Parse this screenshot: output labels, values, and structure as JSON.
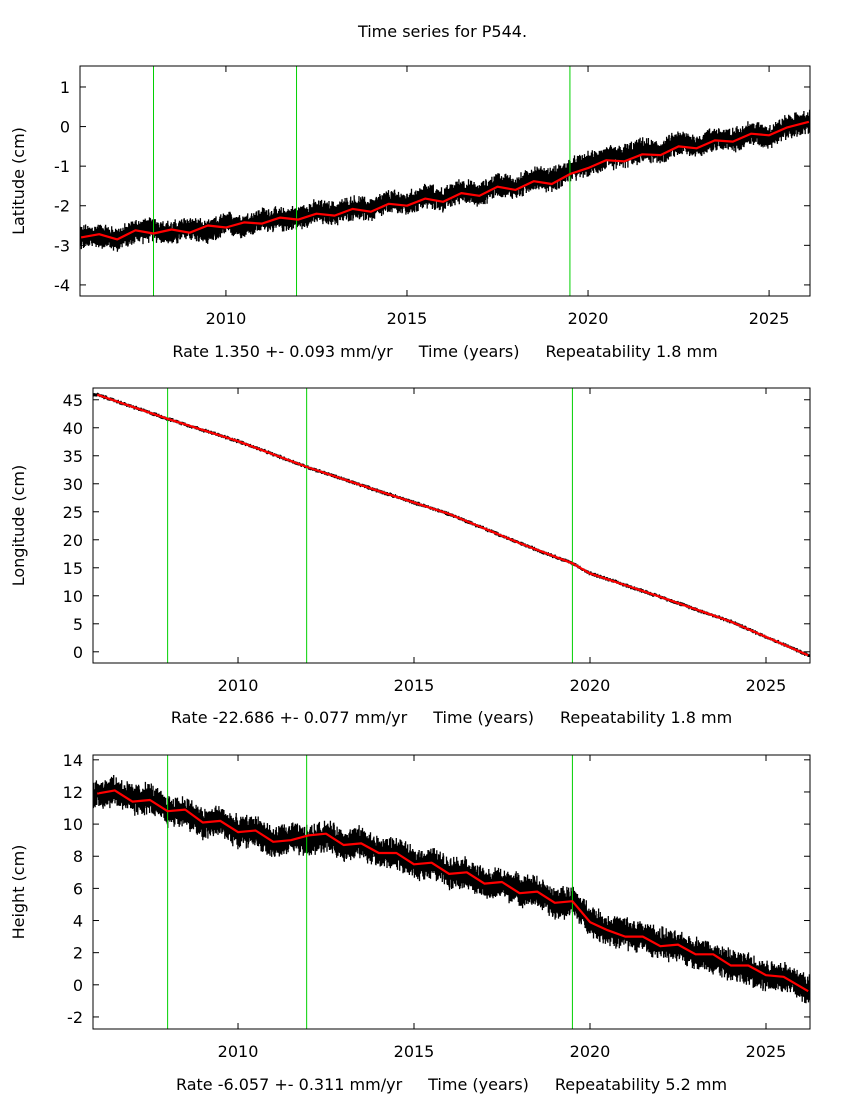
{
  "title": "Time series for P544.",
  "chart_data": [
    {
      "type": "line",
      "component": "latitude",
      "ylabel": "Latitude (cm)",
      "xlabel": "Time (years)",
      "rate_text": "Rate 1.350 +- 0.093 mm/yr",
      "repeatability_text": "Repeatability 1.8 mm",
      "xlim": [
        2005.97,
        2026.13
      ],
      "ylim": [
        -4.28,
        1.53
      ],
      "xticks": [
        2010,
        2015,
        2020,
        2025
      ],
      "yticks": [
        1,
        0,
        -1,
        -2,
        -3,
        -4
      ],
      "events": [
        2008.0,
        2011.95,
        2019.5
      ],
      "noise_amplitude": 0.28,
      "series": [
        {
          "name": "data",
          "color": "#000000",
          "x": [
            2006.0,
            2006.5,
            2007.0,
            2007.5,
            2008.0,
            2008.5,
            2009.0,
            2009.5,
            2010.0,
            2010.5,
            2011.0,
            2011.5,
            2012.0,
            2012.5,
            2013.0,
            2013.5,
            2014.0,
            2014.5,
            2015.0,
            2015.5,
            2016.0,
            2016.5,
            2017.0,
            2017.5,
            2018.0,
            2018.5,
            2019.0,
            2019.5,
            2020.0,
            2020.5,
            2021.0,
            2021.5,
            2022.0,
            2022.5,
            2023.0,
            2023.5,
            2024.0,
            2024.5,
            2025.0,
            2025.5,
            2026.1
          ],
          "y": [
            -2.8,
            -2.75,
            -2.85,
            -2.65,
            -2.6,
            -2.7,
            -2.55,
            -2.7,
            -2.45,
            -2.5,
            -2.35,
            -2.35,
            -2.3,
            -2.15,
            -2.2,
            -2.05,
            -2.1,
            -1.9,
            -1.95,
            -1.75,
            -1.85,
            -1.6,
            -1.75,
            -1.45,
            -1.55,
            -1.3,
            -1.35,
            -1.1,
            -0.95,
            -0.8,
            -0.75,
            -0.6,
            -0.65,
            -0.4,
            -0.5,
            -0.3,
            -0.35,
            -0.15,
            -0.25,
            0.0,
            0.1
          ]
        },
        {
          "name": "model",
          "color": "#ff0000",
          "x": [
            2006.0,
            2006.5,
            2007.0,
            2007.5,
            2008.0,
            2008.5,
            2009.0,
            2009.5,
            2010.0,
            2010.5,
            2011.0,
            2011.5,
            2012.0,
            2012.5,
            2013.0,
            2013.5,
            2014.0,
            2014.5,
            2015.0,
            2015.5,
            2016.0,
            2016.5,
            2017.0,
            2017.5,
            2018.0,
            2018.5,
            2019.0,
            2019.5,
            2020.0,
            2020.5,
            2021.0,
            2021.5,
            2022.0,
            2022.5,
            2023.0,
            2023.5,
            2024.0,
            2024.5,
            2025.0,
            2025.5,
            2026.1
          ],
          "y": [
            -2.8,
            -2.72,
            -2.85,
            -2.62,
            -2.7,
            -2.6,
            -2.68,
            -2.5,
            -2.55,
            -2.42,
            -2.45,
            -2.3,
            -2.35,
            -2.2,
            -2.25,
            -2.08,
            -2.15,
            -1.95,
            -2.0,
            -1.82,
            -1.9,
            -1.68,
            -1.75,
            -1.52,
            -1.6,
            -1.38,
            -1.45,
            -1.2,
            -1.05,
            -0.85,
            -0.88,
            -0.7,
            -0.72,
            -0.5,
            -0.55,
            -0.35,
            -0.38,
            -0.18,
            -0.22,
            -0.02,
            0.12
          ]
        }
      ]
    },
    {
      "type": "line",
      "component": "longitude",
      "ylabel": "Longitude (cm)",
      "xlabel": "Time (years)",
      "rate_text": "Rate -22.686 +- 0.077 mm/yr",
      "repeatability_text": "Repeatability 1.8 mm",
      "xlim": [
        2005.88,
        2026.25
      ],
      "ylim": [
        -2.0,
        47.1
      ],
      "xticks": [
        2010,
        2015,
        2020,
        2025
      ],
      "yticks": [
        45,
        40,
        35,
        30,
        25,
        20,
        15,
        10,
        5,
        0
      ],
      "events": [
        2008.0,
        2011.95,
        2019.5
      ],
      "noise_amplitude": 0.35,
      "series": [
        {
          "name": "data",
          "color": "#000000",
          "x": [
            2006.0,
            2008.0,
            2010.0,
            2012.0,
            2014.0,
            2016.0,
            2018.0,
            2019.5,
            2020.0,
            2022.0,
            2024.0,
            2026.2
          ],
          "y": [
            45.9,
            41.6,
            37.6,
            32.9,
            28.7,
            24.6,
            19.4,
            15.8,
            14.0,
            9.8,
            5.4,
            -0.6
          ]
        },
        {
          "name": "model",
          "color": "#ff0000",
          "x": [
            2006.0,
            2008.0,
            2010.0,
            2012.0,
            2014.0,
            2016.0,
            2018.0,
            2019.5,
            2020.0,
            2022.0,
            2024.0,
            2026.2
          ],
          "y": [
            45.9,
            41.6,
            37.6,
            32.9,
            28.7,
            24.6,
            19.4,
            15.8,
            14.0,
            9.8,
            5.4,
            -0.6
          ]
        }
      ]
    },
    {
      "type": "line",
      "component": "height",
      "ylabel": "Height (cm)",
      "xlabel": "Time (years)",
      "rate_text": "Rate -6.057 +- 0.311 mm/yr",
      "repeatability_text": "Repeatability 5.2 mm",
      "xlim": [
        2005.88,
        2026.25
      ],
      "ylim": [
        -2.75,
        14.3
      ],
      "xticks": [
        2010,
        2015,
        2020,
        2025
      ],
      "yticks": [
        14,
        12,
        10,
        8,
        6,
        4,
        2,
        0,
        -2
      ],
      "events": [
        2008.0,
        2011.95,
        2019.5
      ],
      "noise_amplitude": 0.9,
      "series": [
        {
          "name": "data",
          "color": "#000000",
          "x": [
            2006.0,
            2006.5,
            2007.0,
            2007.5,
            2008.0,
            2008.5,
            2009.0,
            2009.5,
            2010.0,
            2010.5,
            2011.0,
            2011.5,
            2012.0,
            2012.5,
            2013.0,
            2013.5,
            2014.0,
            2014.5,
            2015.0,
            2015.5,
            2016.0,
            2016.5,
            2017.0,
            2017.5,
            2018.0,
            2018.5,
            2019.0,
            2019.5,
            2020.0,
            2020.5,
            2021.0,
            2021.5,
            2022.0,
            2022.5,
            2023.0,
            2023.5,
            2024.0,
            2024.5,
            2025.0,
            2025.5,
            2026.2
          ],
          "y": [
            11.8,
            12.1,
            11.5,
            11.6,
            10.8,
            10.8,
            10.0,
            10.2,
            9.5,
            9.6,
            8.8,
            9.1,
            8.9,
            9.3,
            8.7,
            8.9,
            8.2,
            8.2,
            7.5,
            7.6,
            7.0,
            7.0,
            6.2,
            6.3,
            5.9,
            5.8,
            5.0,
            5.2,
            4.0,
            3.4,
            3.2,
            3.0,
            2.6,
            2.3,
            2.0,
            1.7,
            1.2,
            1.0,
            0.6,
            0.5,
            -0.3
          ]
        },
        {
          "name": "model",
          "color": "#ff0000",
          "x": [
            2006.0,
            2006.5,
            2007.0,
            2007.5,
            2008.0,
            2008.5,
            2009.0,
            2009.5,
            2010.0,
            2010.5,
            2011.0,
            2011.5,
            2012.0,
            2012.5,
            2013.0,
            2013.5,
            2014.0,
            2014.5,
            2015.0,
            2015.5,
            2016.0,
            2016.5,
            2017.0,
            2017.5,
            2018.0,
            2018.5,
            2019.0,
            2019.5,
            2020.0,
            2020.5,
            2021.0,
            2021.5,
            2022.0,
            2022.5,
            2023.0,
            2023.5,
            2024.0,
            2024.5,
            2025.0,
            2025.5,
            2026.2
          ],
          "y": [
            11.9,
            12.1,
            11.4,
            11.5,
            10.8,
            10.9,
            10.1,
            10.2,
            9.5,
            9.6,
            8.9,
            9.0,
            9.3,
            9.4,
            8.7,
            8.8,
            8.2,
            8.2,
            7.5,
            7.6,
            6.9,
            7.0,
            6.3,
            6.4,
            5.7,
            5.8,
            5.1,
            5.2,
            3.9,
            3.4,
            3.0,
            3.0,
            2.4,
            2.5,
            1.9,
            1.9,
            1.2,
            1.2,
            0.6,
            0.5,
            -0.4
          ]
        }
      ]
    }
  ],
  "colors": {
    "data": "#000000",
    "model": "#ff0000",
    "event_line": "#00d000",
    "frame": "#000000"
  }
}
